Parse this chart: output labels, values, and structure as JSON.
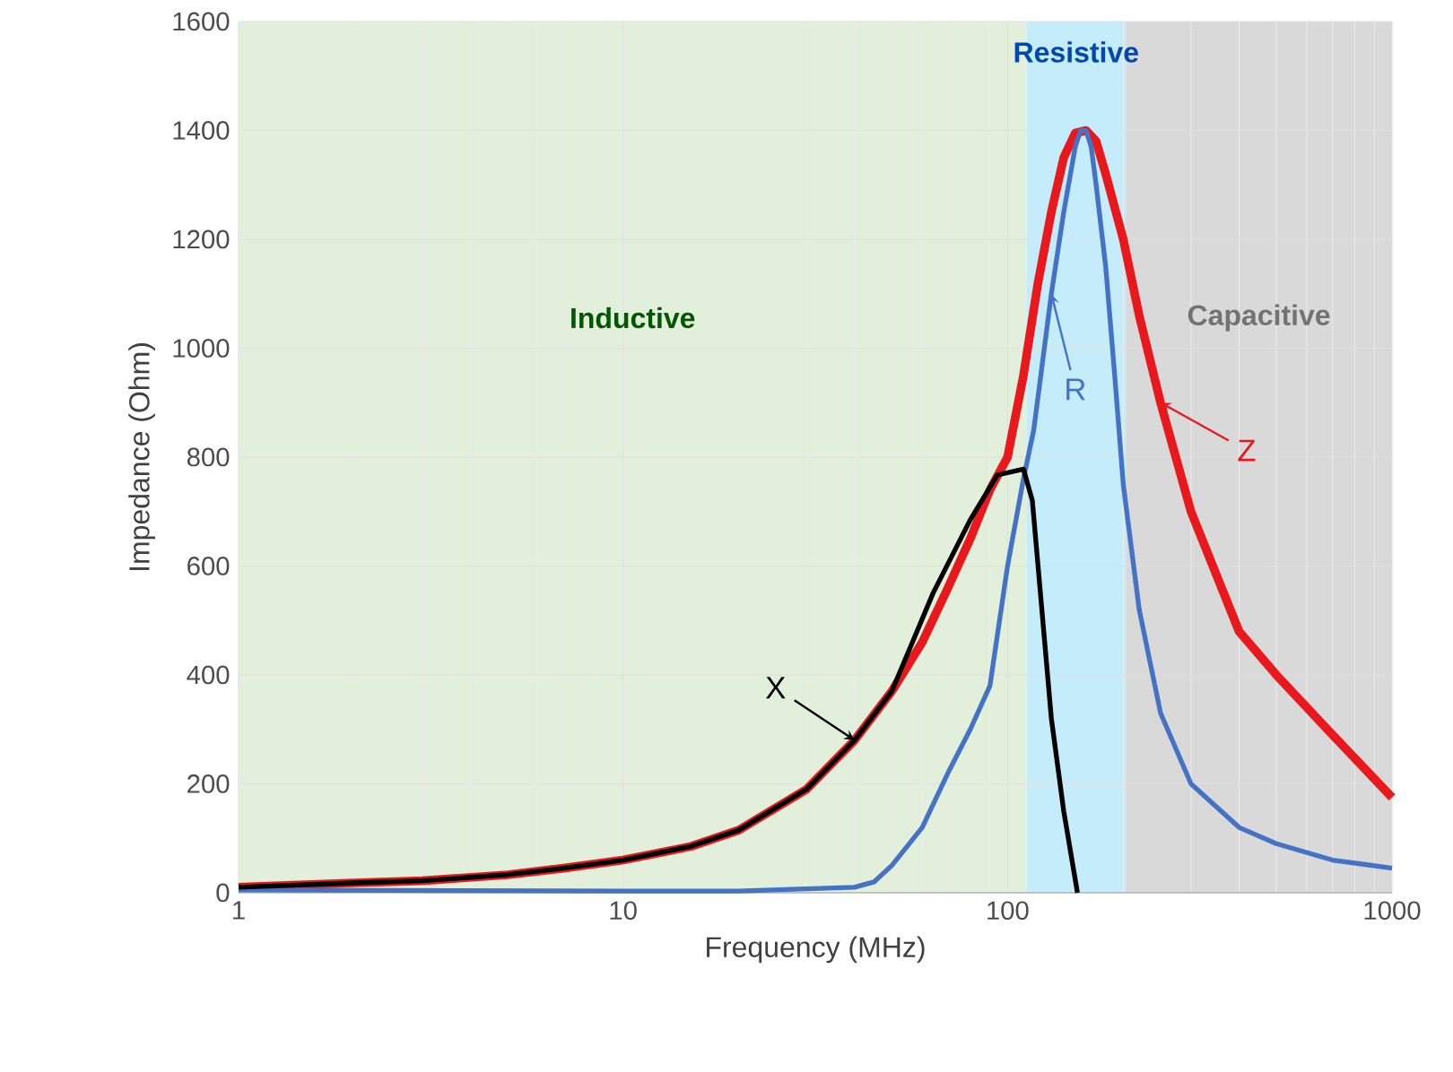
{
  "chart_data": {
    "type": "line",
    "xlabel": "Frequency (MHz)",
    "ylabel": "Impedance (Ohm)",
    "log": "x",
    "xlim": [
      1,
      1000
    ],
    "xticks": [
      1,
      10,
      100,
      1000
    ],
    "ylim": [
      0,
      1600
    ],
    "yticks": [
      0,
      200,
      400,
      600,
      800,
      1000,
      1200,
      1400,
      1600
    ],
    "grid": true,
    "marker": "none",
    "line_style": "solid",
    "bands": [
      {
        "axis": "x",
        "from": 1,
        "to": 112,
        "label": "Inductive",
        "color": "#e2efda"
      },
      {
        "axis": "x",
        "from": 112,
        "to": 203,
        "label": "Resistive",
        "color": "#c5ecfa"
      },
      {
        "axis": "x",
        "from": 203,
        "to": 1000,
        "label": "Capacitive",
        "color": "#d9d9d9"
      }
    ],
    "annotations": [
      {
        "text": "Z",
        "x": 250,
        "y": 900
      },
      {
        "text": "R",
        "x": 130,
        "y": 1100
      },
      {
        "text": "X",
        "x": 40,
        "y": 280
      }
    ],
    "series": [
      {
        "color": "#e8181c",
        "x": [
          1,
          2,
          3,
          5,
          7,
          10,
          15,
          20,
          30,
          40,
          50,
          60,
          70,
          80,
          90,
          100,
          110,
          120,
          130,
          140,
          150,
          160,
          170,
          180,
          200,
          220,
          250,
          300,
          400,
          500,
          700,
          1000
        ],
        "values": [
          10,
          18,
          22,
          33,
          45,
          60,
          85,
          115,
          190,
          280,
          370,
          460,
          560,
          650,
          740,
          800,
          950,
          1120,
          1250,
          1350,
          1395,
          1400,
          1380,
          1320,
          1200,
          1060,
          900,
          700,
          480,
          400,
          290,
          175
        ]
      },
      {
        "color": "#4472c4",
        "x": [
          1,
          10,
          20,
          40,
          45,
          50,
          60,
          70,
          80,
          90,
          100,
          110,
          117,
          130,
          140,
          150,
          155,
          160,
          165,
          170,
          180,
          190,
          200,
          220,
          250,
          300,
          400,
          500,
          700,
          1000
        ],
        "values": [
          5,
          3,
          3,
          10,
          20,
          50,
          120,
          220,
          300,
          380,
          600,
          760,
          850,
          1100,
          1250,
          1370,
          1400,
          1400,
          1370,
          1300,
          1150,
          950,
          750,
          520,
          330,
          200,
          120,
          90,
          60,
          45
        ]
      },
      {
        "color": "#000000",
        "x": [
          1,
          2,
          3,
          5,
          7,
          10,
          15,
          20,
          30,
          40,
          50,
          64,
          80,
          94,
          110,
          116,
          130,
          140,
          152
        ],
        "values": [
          10,
          18,
          22,
          33,
          45,
          60,
          85,
          115,
          190,
          280,
          370,
          550,
          685,
          767,
          778,
          720,
          320,
          150,
          0
        ]
      }
    ]
  }
}
